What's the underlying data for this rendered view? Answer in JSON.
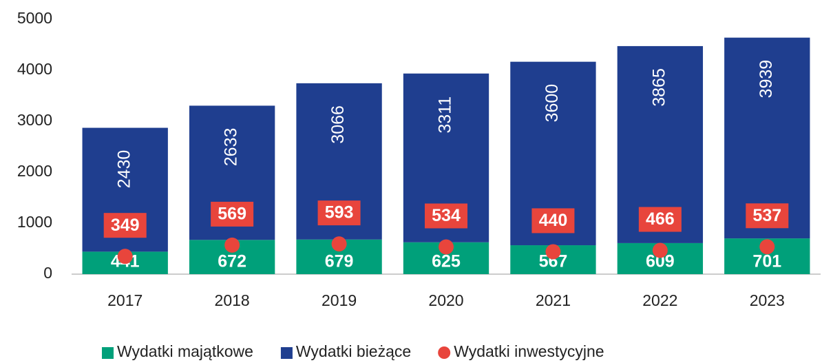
{
  "chart_data": {
    "type": "bar",
    "stacked": true,
    "categories": [
      "2017",
      "2018",
      "2019",
      "2020",
      "2021",
      "2022",
      "2023"
    ],
    "series": [
      {
        "name": "Wydatki majątkowe",
        "color": "#00a07a",
        "values": [
          441,
          672,
          679,
          625,
          567,
          609,
          701
        ]
      },
      {
        "name": "Wydatki bieżące",
        "color": "#1f3e8f",
        "values": [
          2430,
          2633,
          3066,
          3311,
          3600,
          3865,
          3939
        ]
      },
      {
        "name": "Wydatki inwestycyjne",
        "color": "#e8453c",
        "type": "scatter",
        "values": [
          349,
          569,
          593,
          534,
          440,
          466,
          537
        ]
      }
    ],
    "ylim": [
      0,
      5000
    ],
    "yticks": [
      0,
      1000,
      2000,
      3000,
      4000,
      5000
    ],
    "grid": false,
    "legend": "bottom"
  }
}
